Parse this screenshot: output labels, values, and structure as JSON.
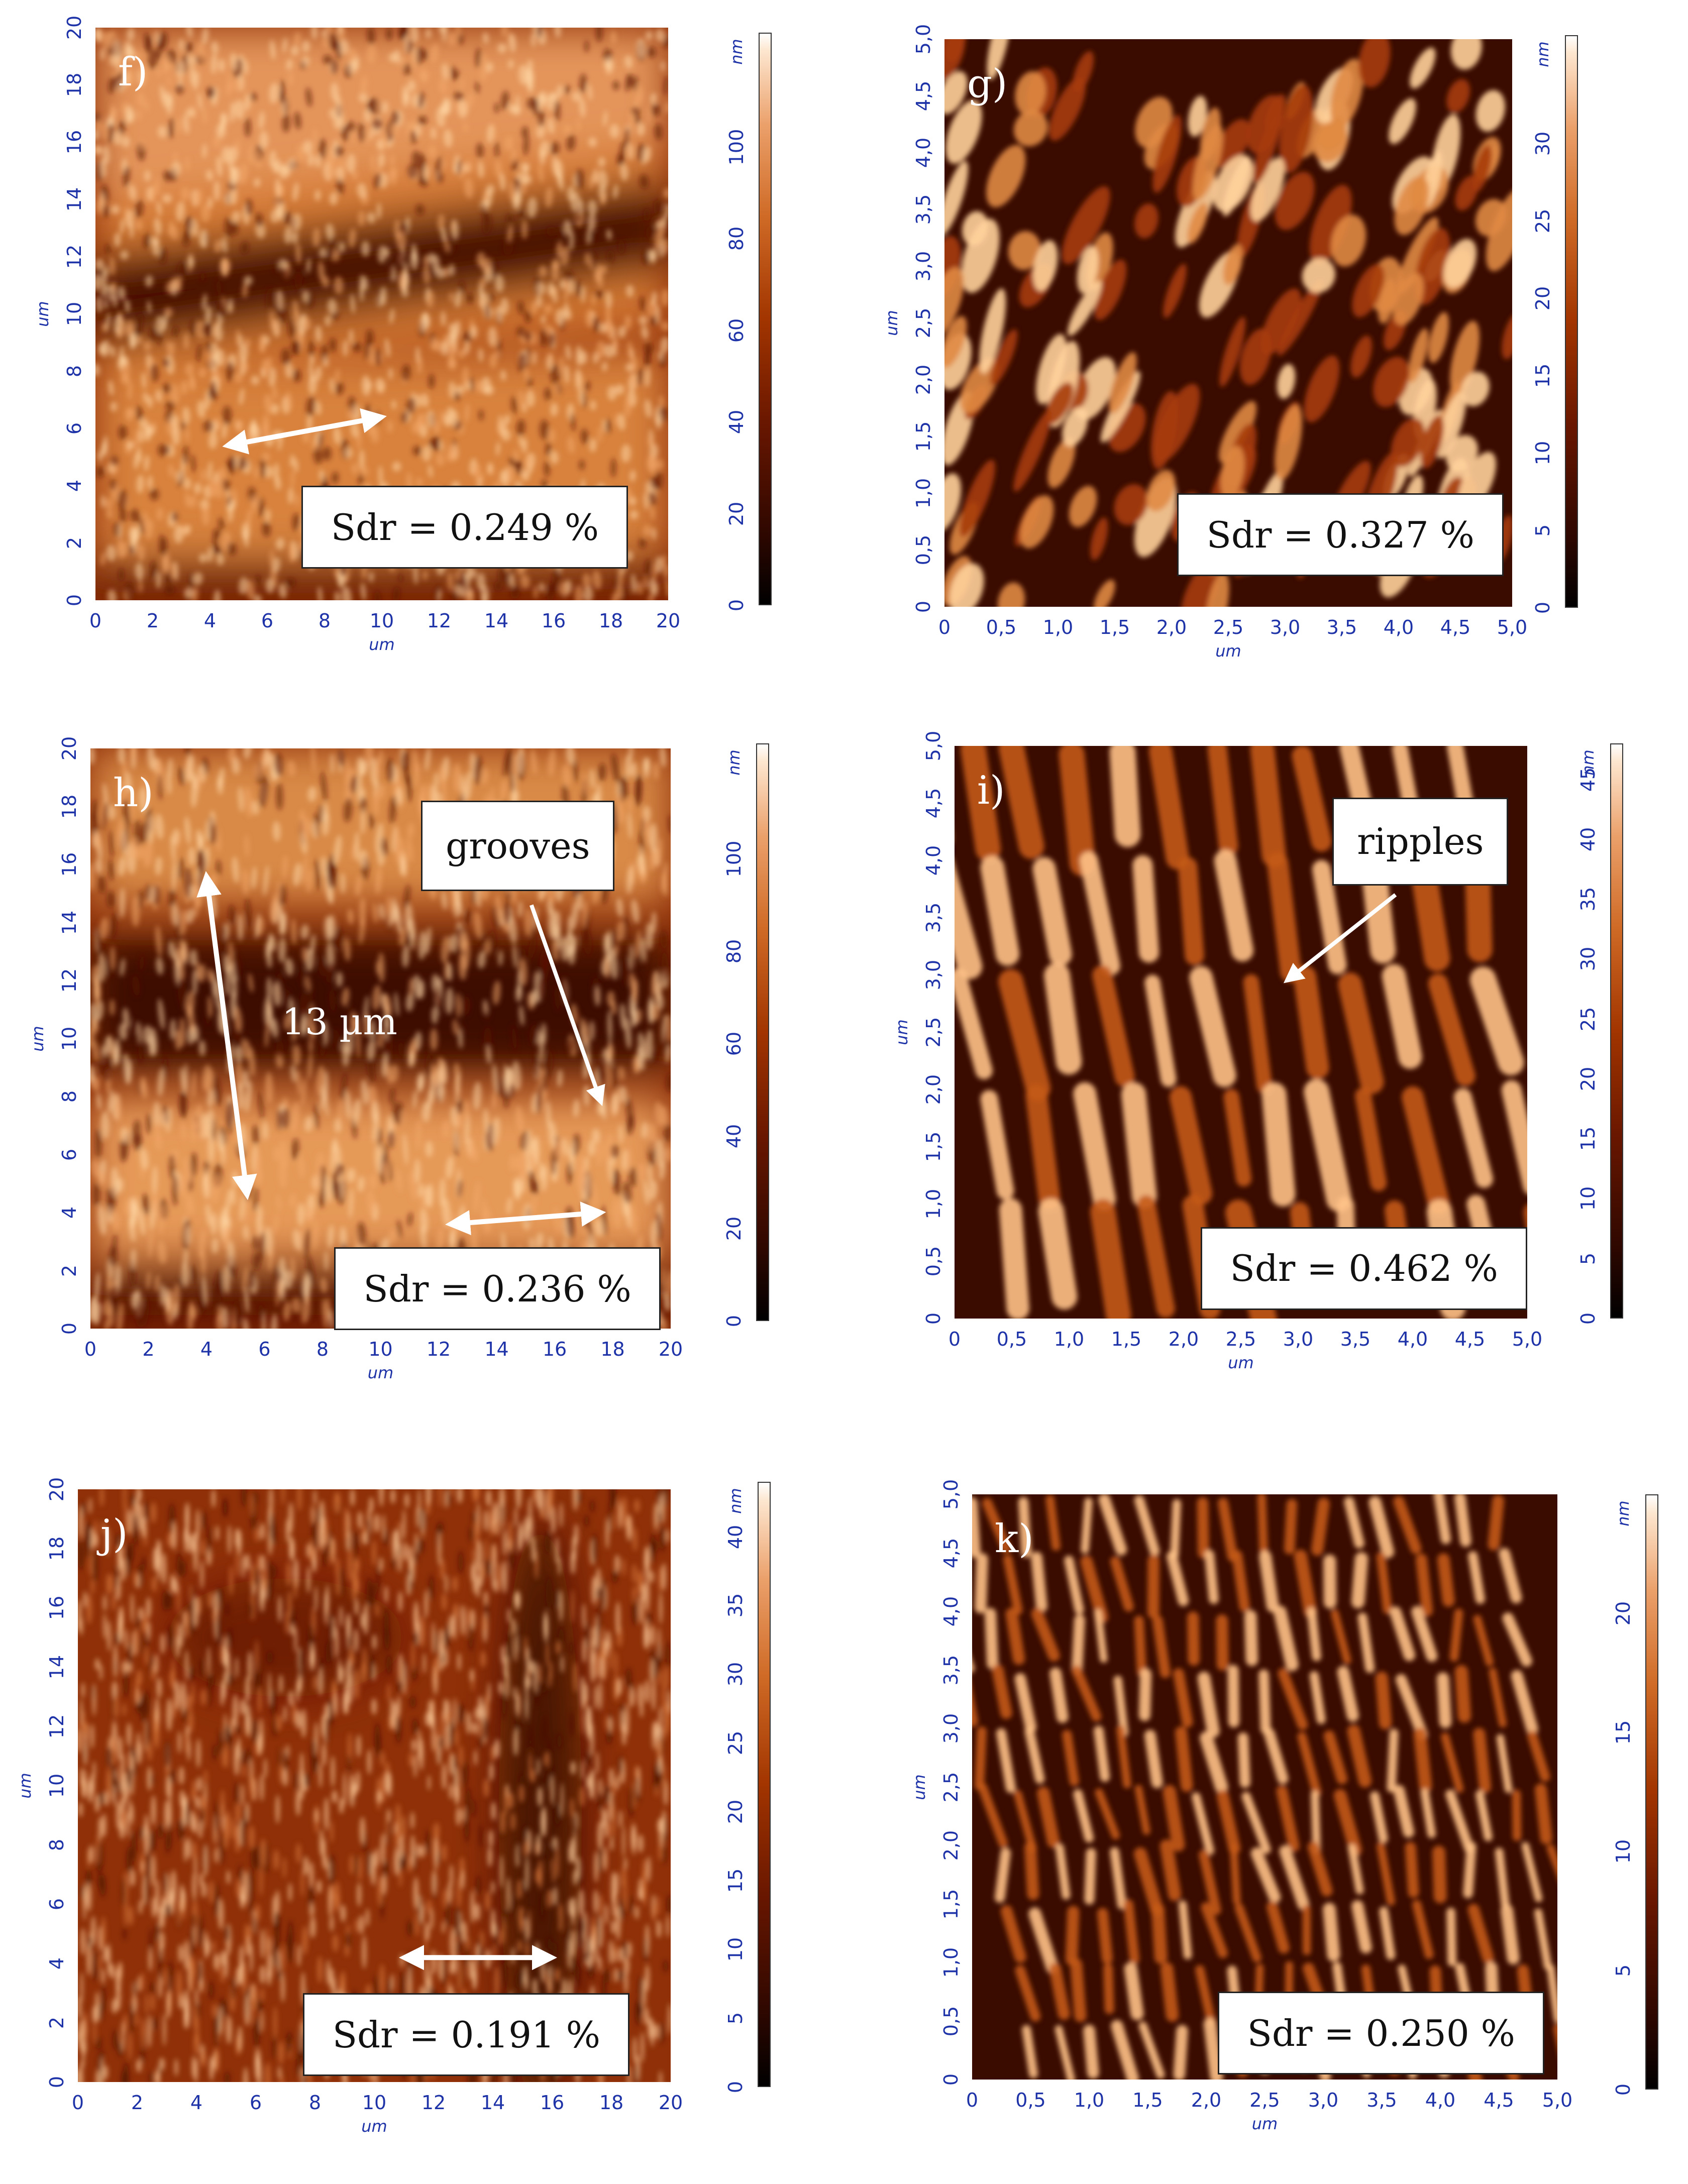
{
  "panels": [
    {
      "id": "f",
      "letter": "f)",
      "sdr": "Sdr = 0.249 %",
      "x_unit": "um",
      "y_unit": "um",
      "cbar_unit": "nm",
      "x_ticks": [
        "0",
        "2",
        "4",
        "6",
        "8",
        "10",
        "12",
        "14",
        "16",
        "18",
        "20"
      ],
      "y_ticks": [
        "0",
        "2",
        "4",
        "6",
        "8",
        "10",
        "12",
        "14",
        "16",
        "18",
        "20"
      ],
      "cbar_ticks": [
        "0",
        "20",
        "40",
        "60",
        "80",
        "100"
      ],
      "cbar_max": 125,
      "texture": "bands-dots",
      "annotation": null
    },
    {
      "id": "g",
      "letter": "g)",
      "sdr": "Sdr = 0.327 %",
      "x_unit": "um",
      "y_unit": "um",
      "cbar_unit": "nm",
      "x_ticks": [
        "0",
        "0,5",
        "1,0",
        "1,5",
        "2,0",
        "2,5",
        "3,0",
        "3,5",
        "4,0",
        "4,5",
        "5,0"
      ],
      "y_ticks": [
        "0",
        "0,5",
        "1,0",
        "1,5",
        "2,0",
        "2,5",
        "3,0",
        "3,5",
        "4,0",
        "4,5",
        "5,0"
      ],
      "cbar_ticks": [
        "0",
        "5",
        "10",
        "15",
        "20",
        "25",
        "30"
      ],
      "cbar_max": 37,
      "texture": "blobs",
      "annotation": null
    },
    {
      "id": "h",
      "letter": "h)",
      "sdr": "Sdr = 0.236 %",
      "x_unit": "um",
      "y_unit": "um",
      "cbar_unit": "nm",
      "x_ticks": [
        "0",
        "2",
        "4",
        "6",
        "8",
        "10",
        "12",
        "14",
        "16",
        "18",
        "20"
      ],
      "y_ticks": [
        "0",
        "2",
        "4",
        "6",
        "8",
        "10",
        "12",
        "14",
        "16",
        "18",
        "20"
      ],
      "cbar_ticks": [
        "0",
        "20",
        "40",
        "60",
        "80",
        "100"
      ],
      "cbar_max": 125,
      "texture": "bands-streaks",
      "annotation": {
        "label": "grooves",
        "measure": "13 µm"
      }
    },
    {
      "id": "i",
      "letter": "i)",
      "sdr": "Sdr = 0.462 %",
      "x_unit": "um",
      "y_unit": "um",
      "cbar_unit": "nm",
      "x_ticks": [
        "0",
        "0,5",
        "1,0",
        "1,5",
        "2,0",
        "2,5",
        "3,0",
        "3,5",
        "4,0",
        "4,5",
        "5,0"
      ],
      "y_ticks": [
        "0",
        "0,5",
        "1,0",
        "1,5",
        "2,0",
        "2,5",
        "3,0",
        "3,5",
        "4,0",
        "4,5",
        "5,0"
      ],
      "cbar_ticks": [
        "0",
        "5",
        "10",
        "15",
        "20",
        "25",
        "30",
        "35",
        "40",
        "45"
      ],
      "cbar_max": 48,
      "texture": "ripples",
      "annotation": {
        "label": "ripples"
      }
    },
    {
      "id": "j",
      "letter": "j)",
      "sdr": "Sdr = 0.191 %",
      "x_unit": "um",
      "y_unit": "um",
      "cbar_unit": "nm",
      "x_ticks": [
        "0",
        "2",
        "4",
        "6",
        "8",
        "10",
        "12",
        "14",
        "16",
        "18",
        "20"
      ],
      "y_ticks": [
        "0",
        "2",
        "4",
        "6",
        "8",
        "10",
        "12",
        "14",
        "16",
        "18",
        "20"
      ],
      "cbar_ticks": [
        "0",
        "5",
        "10",
        "15",
        "20",
        "25",
        "30",
        "35",
        "40"
      ],
      "cbar_max": 44,
      "texture": "fine-streaks",
      "annotation": null
    },
    {
      "id": "k",
      "letter": "k)",
      "sdr": "Sdr = 0.250 %",
      "x_unit": "um",
      "y_unit": "um",
      "cbar_unit": "nm",
      "x_ticks": [
        "0",
        "0,5",
        "1,0",
        "1,5",
        "2,0",
        "2,5",
        "3,0",
        "3,5",
        "4,0",
        "4,5",
        "5,0"
      ],
      "y_ticks": [
        "0",
        "0,5",
        "1,0",
        "1,5",
        "2,0",
        "2,5",
        "3,0",
        "3,5",
        "4,0",
        "4,5",
        "5,0"
      ],
      "cbar_ticks": [
        "0",
        "5",
        "10",
        "15",
        "20"
      ],
      "cbar_max": 25,
      "texture": "thin-ripples",
      "annotation": null
    }
  ]
}
